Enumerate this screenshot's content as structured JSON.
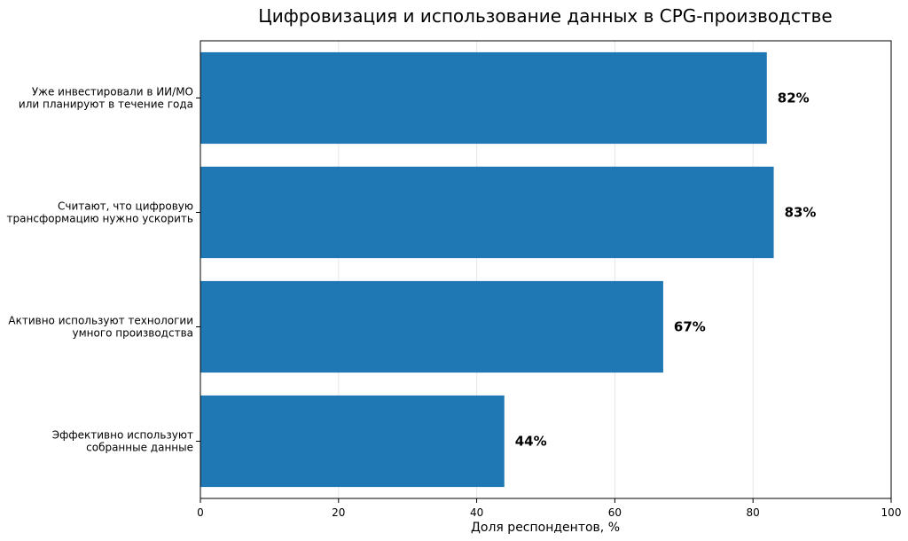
{
  "chart_data": {
    "type": "bar",
    "orientation": "horizontal",
    "title": "Цифровизация и использование данных в CPG-производстве",
    "xlabel": "Доля респондентов, %",
    "ylabel": "",
    "xlim": [
      0,
      100
    ],
    "x_ticks": [
      "0",
      "20",
      "40",
      "60",
      "80",
      "100"
    ],
    "grid": "vertical",
    "legend": "none",
    "bar_color": "#1f77b4",
    "categories": [
      [
        "Уже инвестировали в ИИ/МО",
        "или планируют в течение года"
      ],
      [
        "Считают, что цифровую",
        "трансформацию нужно ускорить"
      ],
      [
        "Активно используют технологии",
        "умного производства"
      ],
      [
        "Эффективно используют",
        "собранные данные"
      ]
    ],
    "values": [
      82,
      83,
      67,
      44
    ],
    "data_labels": [
      "82%",
      "83%",
      "67%",
      "44%"
    ]
  }
}
